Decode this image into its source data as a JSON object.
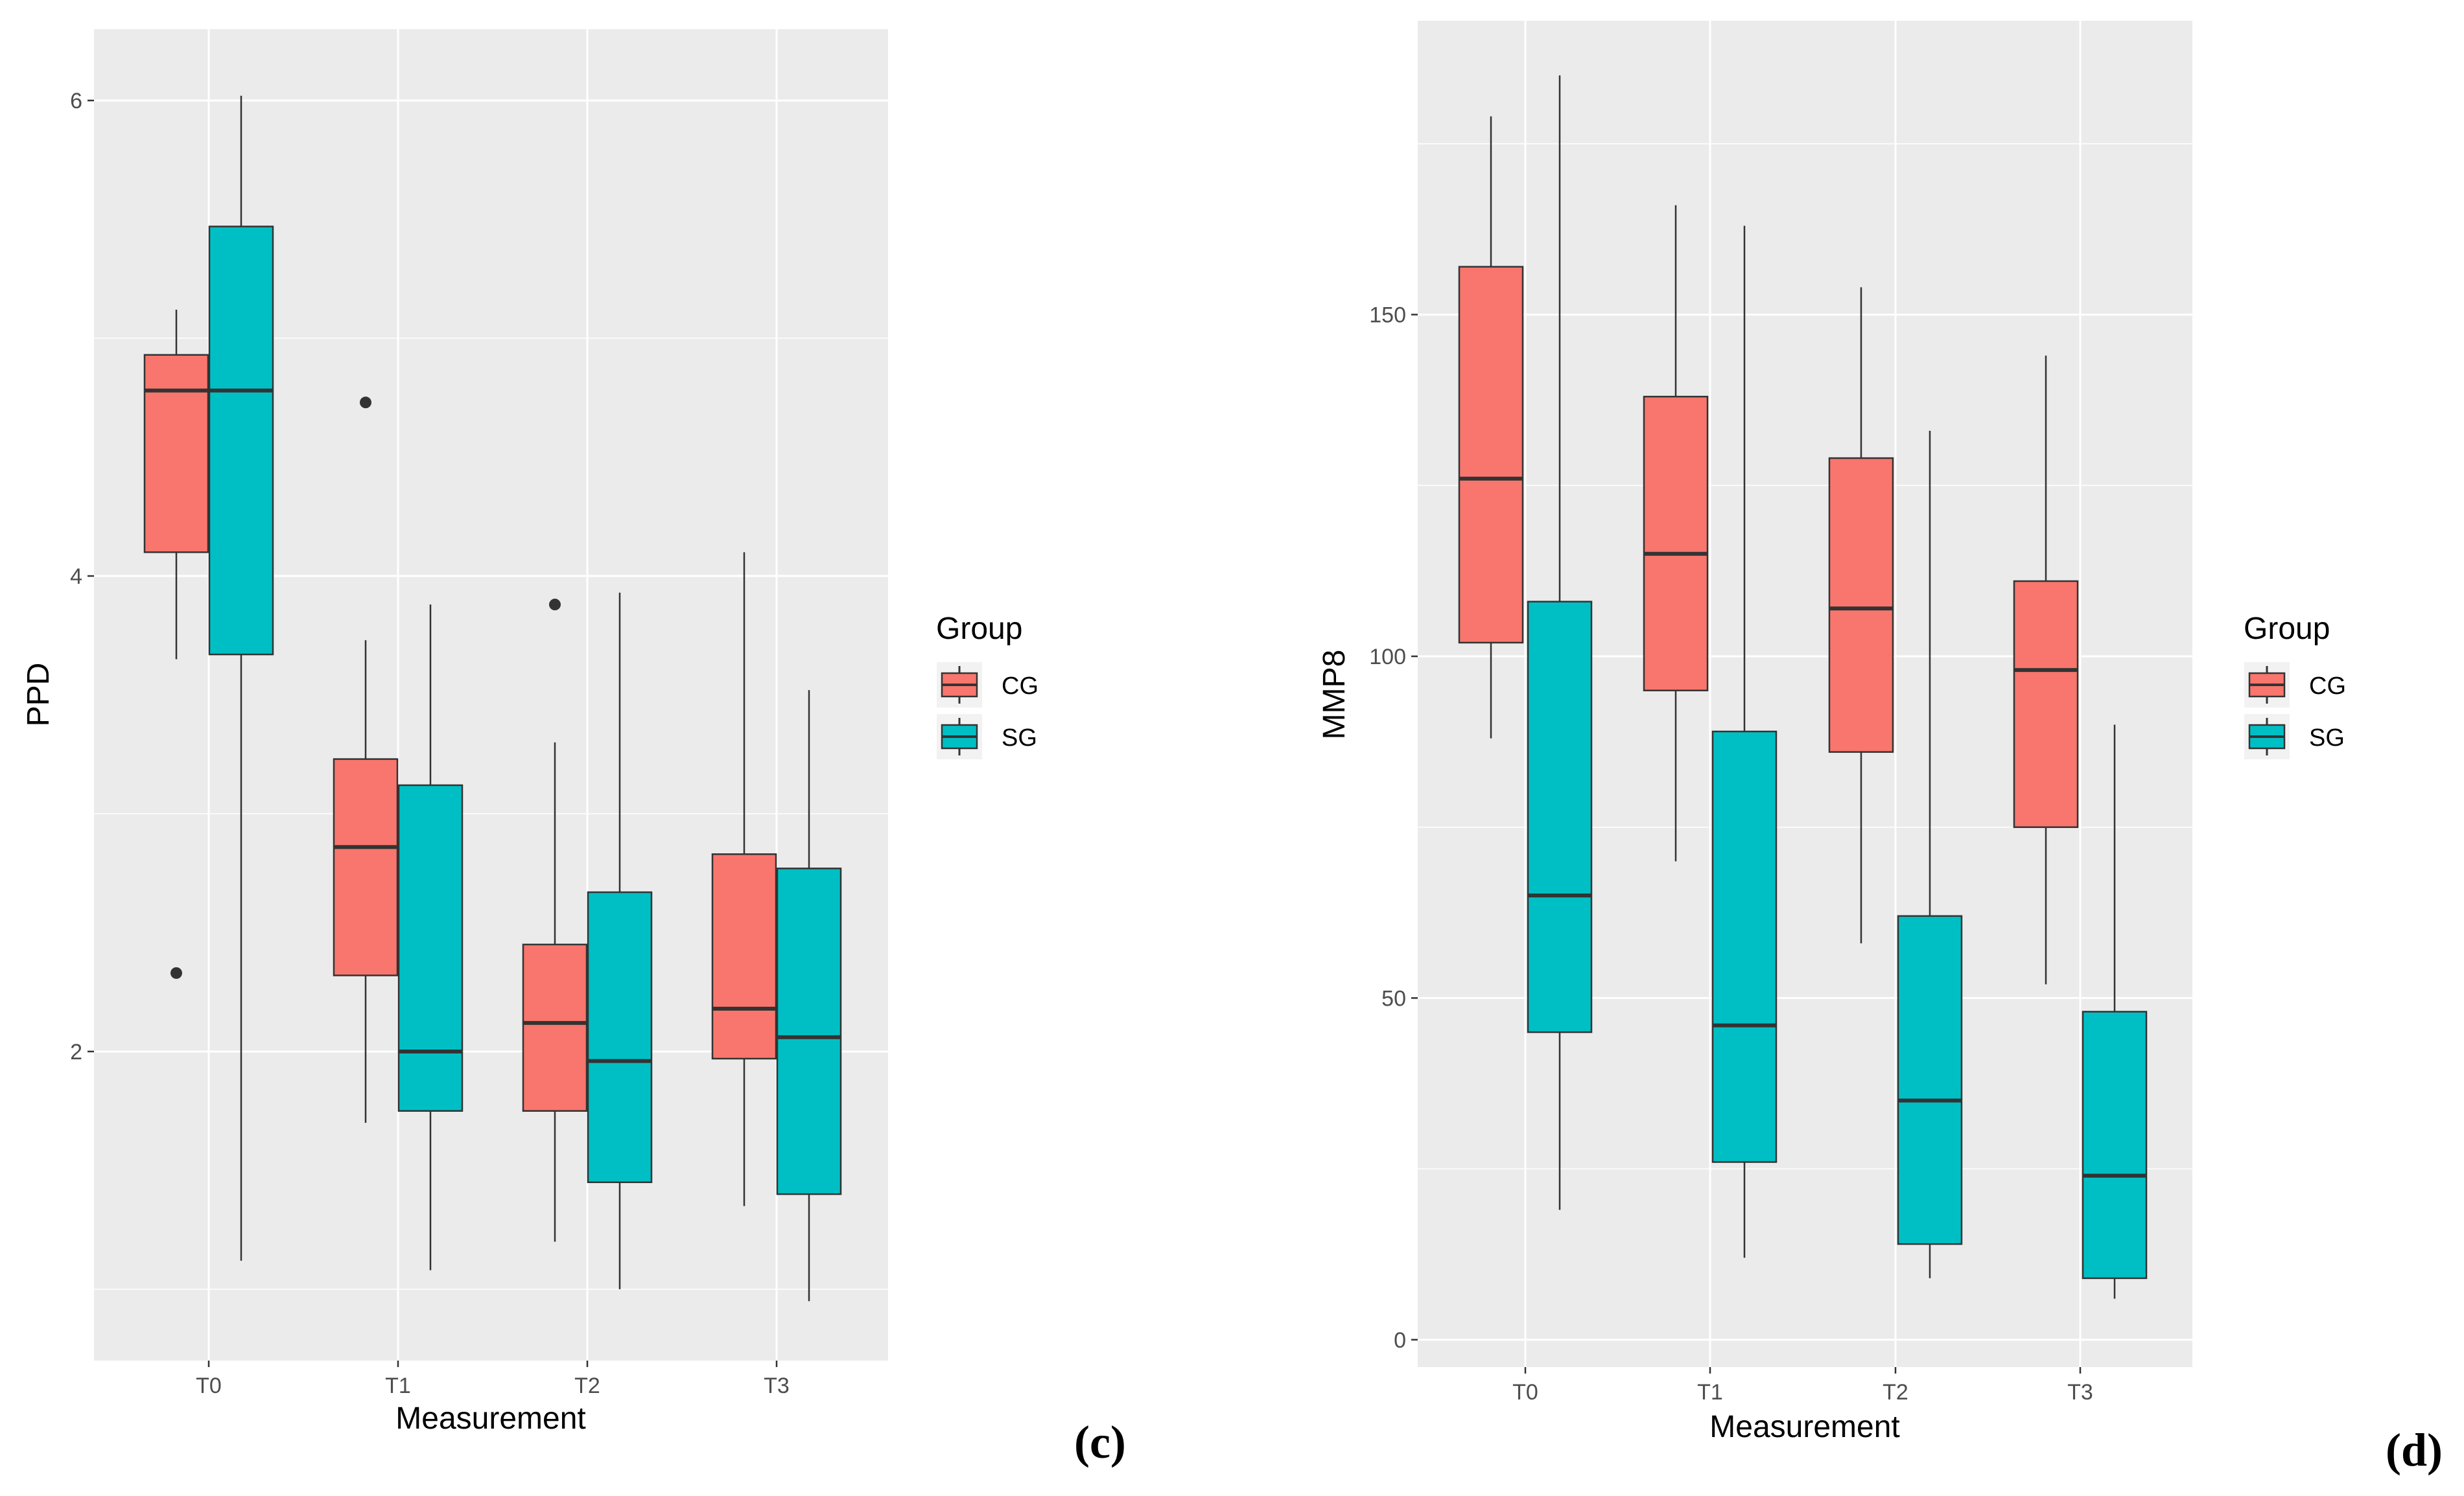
{
  "colors": {
    "CG": "#F8766D",
    "SG": "#00BFC4",
    "panel_bg": "#EBEBEB",
    "grid": "#FFFFFF"
  },
  "chart_data": [
    {
      "type": "boxplot",
      "panel_label": "(c)",
      "xlabel": "Measurement",
      "ylabel": "PPD",
      "ylim": [
        0.7,
        6.3
      ],
      "yticks": [
        2,
        4,
        6
      ],
      "ytick_labels": [
        "2",
        "4",
        "6"
      ],
      "categories": [
        "T0",
        "T1",
        "T2",
        "T3"
      ],
      "legend": {
        "title": "Group",
        "entries": [
          "CG",
          "SG"
        ],
        "position": "right"
      },
      "series": [
        {
          "name": "CG",
          "boxes": [
            {
              "category": "T0",
              "whisker_low": 3.65,
              "q1": 4.1,
              "median": 4.78,
              "q3": 4.93,
              "whisker_high": 5.12,
              "outliers": [
                2.33
              ]
            },
            {
              "category": "T1",
              "whisker_low": 1.7,
              "q1": 2.32,
              "median": 2.86,
              "q3": 3.23,
              "whisker_high": 3.73,
              "outliers": [
                4.73
              ]
            },
            {
              "category": "T2",
              "whisker_low": 1.2,
              "q1": 1.75,
              "median": 2.12,
              "q3": 2.45,
              "whisker_high": 3.3,
              "outliers": [
                3.88
              ]
            },
            {
              "category": "T3",
              "whisker_low": 1.35,
              "q1": 1.97,
              "median": 2.18,
              "q3": 2.83,
              "whisker_high": 4.1,
              "outliers": []
            }
          ]
        },
        {
          "name": "SG",
          "boxes": [
            {
              "category": "T0",
              "whisker_low": 1.12,
              "q1": 3.67,
              "median": 4.78,
              "q3": 5.47,
              "whisker_high": 6.02,
              "outliers": []
            },
            {
              "category": "T1",
              "whisker_low": 1.08,
              "q1": 1.75,
              "median": 2.0,
              "q3": 3.12,
              "whisker_high": 3.88,
              "outliers": []
            },
            {
              "category": "T2",
              "whisker_low": 1.0,
              "q1": 1.45,
              "median": 1.96,
              "q3": 2.67,
              "whisker_high": 3.93,
              "outliers": []
            },
            {
              "category": "T3",
              "whisker_low": 0.95,
              "q1": 1.4,
              "median": 2.06,
              "q3": 2.77,
              "whisker_high": 3.52,
              "outliers": []
            }
          ]
        }
      ]
    },
    {
      "type": "boxplot",
      "panel_label": "(d)",
      "xlabel": "Measurement",
      "ylabel": "MMP8",
      "ylim": [
        -4,
        193
      ],
      "yticks": [
        0,
        50,
        100,
        150
      ],
      "ytick_labels": [
        "0",
        "50",
        "100",
        "150"
      ],
      "categories": [
        "T0",
        "T1",
        "T2",
        "T3"
      ],
      "legend": {
        "title": "Group",
        "entries": [
          "CG",
          "SG"
        ],
        "position": "right"
      },
      "series": [
        {
          "name": "CG",
          "boxes": [
            {
              "category": "T0",
              "whisker_low": 88,
              "q1": 102,
              "median": 126,
              "q3": 157,
              "whisker_high": 179,
              "outliers": []
            },
            {
              "category": "T1",
              "whisker_low": 70,
              "q1": 95,
              "median": 115,
              "q3": 138,
              "whisker_high": 166,
              "outliers": []
            },
            {
              "category": "T2",
              "whisker_low": 58,
              "q1": 86,
              "median": 107,
              "q3": 129,
              "whisker_high": 154,
              "outliers": []
            },
            {
              "category": "T3",
              "whisker_low": 52,
              "q1": 75,
              "median": 98,
              "q3": 111,
              "whisker_high": 144,
              "outliers": []
            }
          ]
        },
        {
          "name": "SG",
          "boxes": [
            {
              "category": "T0",
              "whisker_low": 19,
              "q1": 45,
              "median": 65,
              "q3": 108,
              "whisker_high": 185,
              "outliers": []
            },
            {
              "category": "T1",
              "whisker_low": 12,
              "q1": 26,
              "median": 46,
              "q3": 89,
              "whisker_high": 163,
              "outliers": []
            },
            {
              "category": "T2",
              "whisker_low": 9,
              "q1": 14,
              "median": 35,
              "q3": 62,
              "whisker_high": 133,
              "outliers": []
            },
            {
              "category": "T3",
              "whisker_low": 6,
              "q1": 9,
              "median": 24,
              "q3": 48,
              "whisker_high": 90,
              "outliers": []
            }
          ]
        }
      ]
    }
  ]
}
